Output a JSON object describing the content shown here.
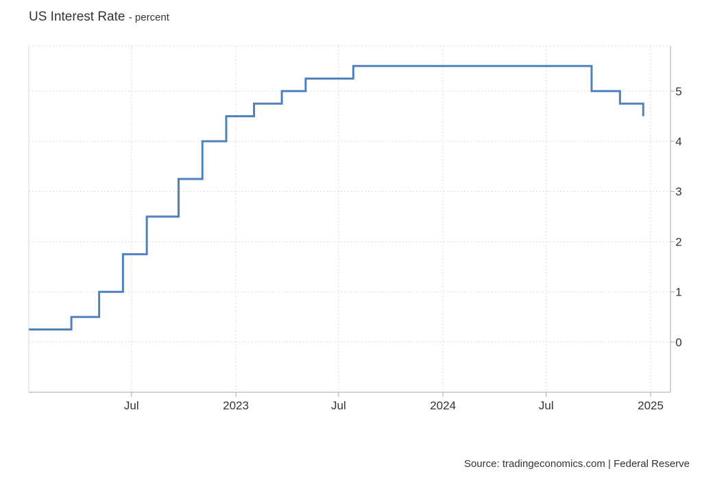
{
  "title": "US Interest Rate",
  "subtitle": "- percent",
  "source": "Source: tradingeconomics.com | Federal Reserve",
  "colors": {
    "line": "#4f81bd",
    "grid": "#d9d9d9",
    "axis": "#aaaaaa",
    "text": "#333333"
  },
  "chart_data": {
    "type": "line",
    "step": true,
    "x_ticks": [
      {
        "x": "2022-07-01",
        "label": "Jul"
      },
      {
        "x": "2023-01-01",
        "label": "2023"
      },
      {
        "x": "2023-07-01",
        "label": "Jul"
      },
      {
        "x": "2024-01-01",
        "label": "2024"
      },
      {
        "x": "2024-07-01",
        "label": "Jul"
      },
      {
        "x": "2025-01-01",
        "label": "2025"
      }
    ],
    "y_ticks": [
      0,
      1,
      2,
      3,
      4,
      5
    ],
    "xlim": [
      "2022-01-01",
      "2025-02-05"
    ],
    "ylim": [
      -1,
      5.9
    ],
    "grid": true,
    "series": [
      {
        "points": [
          {
            "x": "2022-01-01",
            "y": 0.25
          },
          {
            "x": "2022-03-17",
            "y": 0.5
          },
          {
            "x": "2022-05-05",
            "y": 1.0
          },
          {
            "x": "2022-06-16",
            "y": 1.75
          },
          {
            "x": "2022-07-28",
            "y": 2.5
          },
          {
            "x": "2022-09-22",
            "y": 3.25
          },
          {
            "x": "2022-11-03",
            "y": 4.0
          },
          {
            "x": "2022-12-15",
            "y": 4.5
          },
          {
            "x": "2023-02-02",
            "y": 4.75
          },
          {
            "x": "2023-03-23",
            "y": 5.0
          },
          {
            "x": "2023-05-04",
            "y": 5.25
          },
          {
            "x": "2023-07-27",
            "y": 5.5
          },
          {
            "x": "2024-09-19",
            "y": 5.0
          },
          {
            "x": "2024-11-08",
            "y": 4.75
          },
          {
            "x": "2024-12-19",
            "y": 4.5
          }
        ]
      }
    ]
  }
}
